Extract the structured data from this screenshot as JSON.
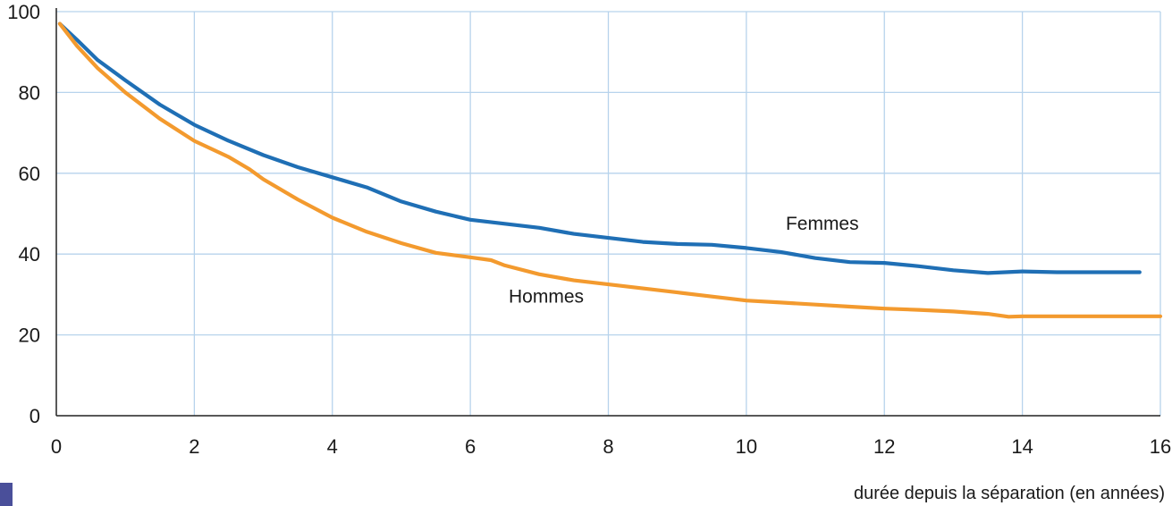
{
  "chart_data": {
    "type": "line",
    "title": "",
    "xlabel": "durée depuis la séparation (en années)",
    "ylabel": "",
    "xlim": [
      0,
      16
    ],
    "ylim": [
      0,
      100
    ],
    "xticks": [
      0,
      2,
      4,
      6,
      8,
      10,
      12,
      14,
      16
    ],
    "yticks": [
      0,
      20,
      40,
      60,
      80,
      100
    ],
    "grid": true,
    "series": [
      {
        "name": "Femmes",
        "color": "#1f6fb5",
        "points": [
          [
            0.05,
            97
          ],
          [
            0.3,
            93
          ],
          [
            0.6,
            88
          ],
          [
            1,
            83
          ],
          [
            1.5,
            77
          ],
          [
            2,
            72
          ],
          [
            2.5,
            68
          ],
          [
            3,
            64.5
          ],
          [
            3.5,
            61.5
          ],
          [
            4,
            59
          ],
          [
            4.5,
            56.5
          ],
          [
            5,
            53
          ],
          [
            5.5,
            50.5
          ],
          [
            6,
            48.5
          ],
          [
            6.5,
            47.5
          ],
          [
            7,
            46.5
          ],
          [
            7.5,
            45
          ],
          [
            8,
            44
          ],
          [
            8.5,
            43
          ],
          [
            9,
            42.5
          ],
          [
            9.5,
            42.3
          ],
          [
            10,
            41.5
          ],
          [
            10.5,
            40.5
          ],
          [
            11,
            39
          ],
          [
            11.5,
            38
          ],
          [
            12,
            37.8
          ],
          [
            12.5,
            37
          ],
          [
            13,
            36
          ],
          [
            13.5,
            35.3
          ],
          [
            14,
            35.7
          ],
          [
            14.5,
            35.5
          ],
          [
            15,
            35.5
          ],
          [
            15.7,
            35.5
          ]
        ]
      },
      {
        "name": "Hommes",
        "color": "#f39a2e",
        "points": [
          [
            0.05,
            97
          ],
          [
            0.3,
            91.5
          ],
          [
            0.6,
            86
          ],
          [
            1,
            80
          ],
          [
            1.5,
            73.5
          ],
          [
            2,
            68
          ],
          [
            2.5,
            64
          ],
          [
            2.8,
            61
          ],
          [
            3,
            58.5
          ],
          [
            3.5,
            53.5
          ],
          [
            4,
            49
          ],
          [
            4.5,
            45.5
          ],
          [
            5,
            42.7
          ],
          [
            5.5,
            40.3
          ],
          [
            6,
            39.2
          ],
          [
            6.3,
            38.5
          ],
          [
            6.5,
            37.2
          ],
          [
            7,
            35
          ],
          [
            7.5,
            33.5
          ],
          [
            8,
            32.5
          ],
          [
            8.5,
            31.5
          ],
          [
            9,
            30.5
          ],
          [
            9.5,
            29.5
          ],
          [
            10,
            28.5
          ],
          [
            10.5,
            28
          ],
          [
            11,
            27.5
          ],
          [
            11.5,
            27
          ],
          [
            12,
            26.5
          ],
          [
            12.5,
            26.2
          ],
          [
            13,
            25.8
          ],
          [
            13.5,
            25.2
          ],
          [
            13.8,
            24.5
          ],
          [
            14,
            24.6
          ],
          [
            15,
            24.6
          ],
          [
            16,
            24.6
          ]
        ]
      }
    ],
    "annotations": [
      {
        "text": "Femmes",
        "x": 11.1,
        "y": 46
      },
      {
        "text": "Hommes",
        "x": 7.1,
        "y": 28
      }
    ]
  }
}
